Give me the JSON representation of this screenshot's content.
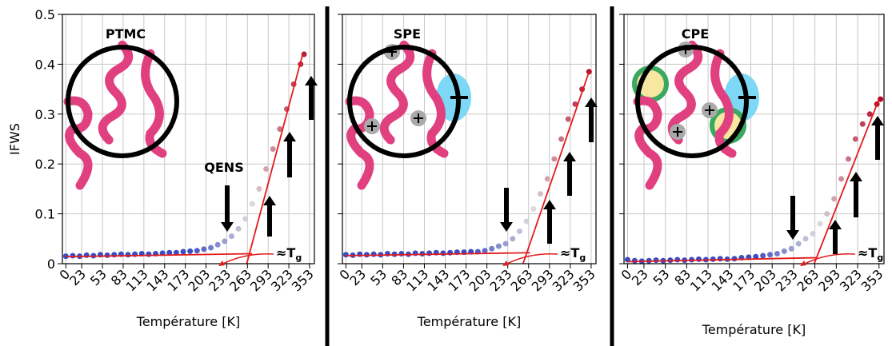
{
  "chart_data": [
    {
      "type": "scatter",
      "title": "PTMC",
      "title_color": "#444444",
      "xlabel": "Température [K]",
      "ylabel": "IFWS",
      "annotation": "QENS",
      "tg_label": "≈T",
      "tg_sub": "g",
      "x": [
        0,
        10,
        20,
        30,
        40,
        50,
        60,
        70,
        80,
        90,
        100,
        110,
        120,
        130,
        140,
        150,
        160,
        170,
        180,
        190,
        200,
        210,
        220,
        230,
        240,
        250,
        260,
        270,
        280,
        290,
        300,
        310,
        320,
        330,
        340,
        345
      ],
      "values": [
        0.015,
        0.016,
        0.015,
        0.017,
        0.016,
        0.018,
        0.017,
        0.018,
        0.019,
        0.018,
        0.019,
        0.02,
        0.019,
        0.02,
        0.021,
        0.022,
        0.022,
        0.024,
        0.025,
        0.026,
        0.029,
        0.032,
        0.038,
        0.045,
        0.055,
        0.07,
        0.09,
        0.12,
        0.15,
        0.19,
        0.23,
        0.27,
        0.31,
        0.36,
        0.4,
        0.42
      ],
      "fit_lines": [
        {
          "x": [
            0,
            270
          ],
          "y": [
            0.014,
            0.02
          ]
        },
        {
          "x": [
            262,
            343
          ],
          "y": [
            0,
            0.42
          ]
        }
      ],
      "xlim": [
        -5,
        360
      ],
      "ylim": [
        0,
        0.5
      ],
      "xticks": [
        0,
        23,
        53,
        83,
        113,
        143,
        173,
        203,
        233,
        263,
        293,
        323,
        353
      ],
      "yticks": [
        0,
        0.1,
        0.2,
        0.3,
        0.4,
        0.5
      ],
      "grid": true,
      "colormap": "coolwarm",
      "fit_color": "#e41a1c"
    },
    {
      "type": "scatter",
      "title": "SPE",
      "title_color": "#e0407f",
      "xlabel": "Température [K]",
      "tg_label": "≈T",
      "tg_sub": "g",
      "x": [
        0,
        10,
        20,
        30,
        40,
        50,
        60,
        70,
        80,
        90,
        100,
        110,
        120,
        130,
        140,
        150,
        160,
        170,
        180,
        190,
        200,
        210,
        220,
        230,
        240,
        250,
        260,
        270,
        280,
        290,
        300,
        310,
        320,
        330,
        340,
        350
      ],
      "values": [
        0.018,
        0.017,
        0.019,
        0.018,
        0.019,
        0.018,
        0.02,
        0.019,
        0.02,
        0.019,
        0.021,
        0.02,
        0.021,
        0.022,
        0.021,
        0.022,
        0.023,
        0.023,
        0.024,
        0.024,
        0.026,
        0.03,
        0.035,
        0.04,
        0.05,
        0.065,
        0.085,
        0.11,
        0.14,
        0.17,
        0.21,
        0.25,
        0.29,
        0.32,
        0.35,
        0.385
      ],
      "fit_lines": [
        {
          "x": [
            0,
            265
          ],
          "y": [
            0.016,
            0.022
          ]
        },
        {
          "x": [
            255,
            350
          ],
          "y": [
            0,
            0.385
          ]
        }
      ],
      "xlim": [
        -5,
        360
      ],
      "ylim": [
        0,
        0.5
      ],
      "xticks": [
        0,
        23,
        53,
        83,
        113,
        143,
        173,
        203,
        233,
        263,
        293,
        323,
        353
      ],
      "yticks": [
        0,
        0.1,
        0.2,
        0.3,
        0.4,
        0.5
      ],
      "grid": true,
      "colormap": "coolwarm",
      "fit_color": "#e41a1c"
    },
    {
      "type": "scatter",
      "title": "CPE",
      "title_color": "#3aa860",
      "xlabel": "Température [K]",
      "tg_label": "≈T",
      "tg_sub": "g",
      "x": [
        0,
        10,
        20,
        30,
        40,
        50,
        60,
        70,
        80,
        90,
        100,
        110,
        120,
        130,
        140,
        150,
        160,
        170,
        180,
        190,
        200,
        210,
        220,
        230,
        240,
        250,
        260,
        270,
        280,
        290,
        300,
        310,
        320,
        330,
        340,
        350,
        355
      ],
      "values": [
        0.008,
        0.006,
        0.005,
        0.006,
        0.007,
        0.006,
        0.007,
        0.008,
        0.007,
        0.008,
        0.009,
        0.008,
        0.009,
        0.01,
        0.009,
        0.01,
        0.012,
        0.013,
        0.014,
        0.016,
        0.018,
        0.02,
        0.025,
        0.03,
        0.04,
        0.05,
        0.06,
        0.08,
        0.1,
        0.13,
        0.17,
        0.21,
        0.25,
        0.28,
        0.3,
        0.32,
        0.33
      ],
      "fit_lines": [
        {
          "x": [
            0,
            265
          ],
          "y": [
            0.004,
            0.012
          ]
        },
        {
          "x": [
            262,
            353
          ],
          "y": [
            0,
            0.33
          ]
        }
      ],
      "xlim": [
        -5,
        360
      ],
      "ylim": [
        0,
        0.5
      ],
      "xticks": [
        0,
        23,
        53,
        83,
        113,
        143,
        173,
        203,
        233,
        263,
        293,
        323,
        353
      ],
      "yticks": [
        0,
        0.1,
        0.2,
        0.3,
        0.4,
        0.5
      ],
      "grid": true,
      "colormap": "coolwarm",
      "fit_color": "#e41a1c"
    }
  ]
}
